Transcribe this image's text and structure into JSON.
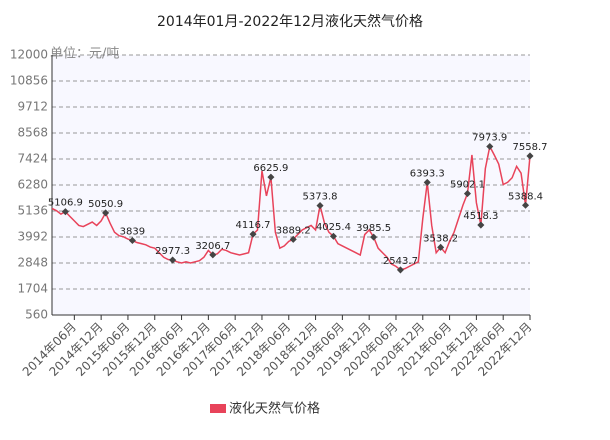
{
  "chart_data": {
    "type": "line",
    "title": "2014年01月-2022年12月液化天然气价格",
    "y_label": "单位：元/吨",
    "categories": [
      null,
      null,
      null,
      null,
      null,
      "2014年06月",
      null,
      null,
      null,
      null,
      null,
      "2014年12月",
      null,
      null,
      null,
      null,
      null,
      "2015年06月",
      null,
      null,
      null,
      null,
      null,
      "2015年12月",
      null,
      null,
      null,
      null,
      null,
      "2016年06月",
      null,
      null,
      null,
      null,
      null,
      "2016年12月",
      null,
      null,
      null,
      null,
      null,
      "2017年06月",
      null,
      null,
      null,
      null,
      null,
      "2017年12月",
      null,
      null,
      null,
      null,
      null,
      "2018年06月",
      null,
      null,
      null,
      null,
      null,
      "2018年12月",
      null,
      null,
      null,
      null,
      null,
      "2019年06月",
      null,
      null,
      null,
      null,
      null,
      "2019年12月",
      null,
      null,
      null,
      null,
      null,
      "2020年06月",
      null,
      null,
      null,
      null,
      null,
      "2020年12月",
      null,
      null,
      null,
      null,
      null,
      "2021年06月",
      null,
      null,
      null,
      null,
      null,
      "2021年12月",
      null,
      null,
      null,
      null,
      null,
      "2022年06月",
      null,
      null,
      null,
      null,
      null,
      "2022年12月"
    ],
    "series": [
      {
        "name": "液化天然气价格",
        "color": "#e8435a",
        "values": [
          5250,
          5150,
          5000,
          5106.9,
          4900,
          4700,
          4500,
          4450,
          4550,
          4650,
          4500,
          4700,
          5050.9,
          4600,
          4200,
          4050,
          4000,
          3900,
          3839,
          3750,
          3700,
          3650,
          3550,
          3500,
          3300,
          3100,
          3000,
          2977.3,
          2900,
          2850,
          2900,
          2850,
          2900,
          2950,
          3100,
          3400,
          3206.7,
          3250,
          3450,
          3400,
          3300,
          3250,
          3200,
          3250,
          3300,
          4116.7,
          4300,
          6900,
          5800,
          6625.9,
          4200,
          3500,
          3600,
          3800,
          3889.2,
          4100,
          4300,
          4400,
          4500,
          4300,
          5373.8,
          4600,
          4200,
          4025.4,
          3700,
          3600,
          3500,
          3400,
          3300,
          3200,
          4100,
          4300,
          3985.5,
          3500,
          3300,
          3100,
          2800,
          2700,
          2543.7,
          2600,
          2700,
          2800,
          2900,
          4800,
          6393.3,
          4500,
          3300,
          3538.2,
          3300,
          3800,
          4200,
          4800,
          5400,
          5902.1,
          7600,
          5500,
          4518.3,
          7000,
          7973.9,
          7600,
          7200,
          6300,
          6400,
          6600,
          7100,
          6800,
          5388.4,
          7558.7
        ],
        "value_labels": [
          null,
          null,
          null,
          "5106.9",
          null,
          null,
          null,
          null,
          null,
          null,
          null,
          null,
          "5050.9",
          null,
          null,
          null,
          null,
          null,
          "3839",
          null,
          null,
          null,
          null,
          null,
          null,
          null,
          null,
          "2977.3",
          null,
          null,
          null,
          null,
          null,
          null,
          null,
          null,
          "3206.7",
          null,
          null,
          null,
          null,
          null,
          null,
          null,
          null,
          "4116.7",
          null,
          null,
          null,
          "6625.9",
          null,
          null,
          null,
          null,
          "3889.2",
          null,
          null,
          null,
          null,
          null,
          "5373.8",
          null,
          null,
          "4025.4",
          null,
          null,
          null,
          null,
          null,
          null,
          null,
          null,
          "3985.5",
          null,
          null,
          null,
          null,
          null,
          "2543.7",
          null,
          null,
          null,
          null,
          null,
          "6393.3",
          null,
          null,
          "3538.2",
          null,
          null,
          null,
          null,
          null,
          "5902.1",
          null,
          null,
          "4518.3",
          null,
          "7973.9",
          null,
          null,
          null,
          null,
          null,
          null,
          null,
          "5388.4",
          "7558.7"
        ]
      }
    ],
    "ylim": [
      560,
      12000
    ],
    "yticks": [
      560,
      1704,
      2848,
      3992,
      5136,
      6280,
      7424,
      8568,
      9712,
      10856,
      12000
    ],
    "grid": true
  }
}
